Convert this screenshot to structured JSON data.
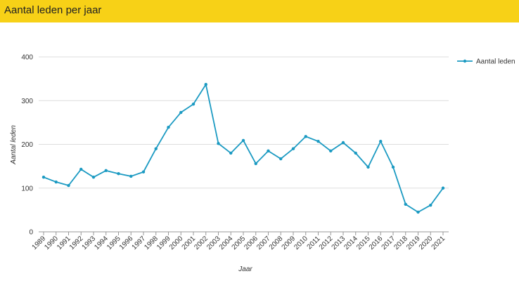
{
  "chart_data": {
    "type": "line",
    "title": "Aantal leden per jaar",
    "x_label": "Jaar",
    "y_label": "Aantal leden",
    "categories": [
      "1989",
      "1990",
      "1991",
      "1992",
      "1993",
      "1994",
      "1995",
      "1996",
      "1997",
      "1998",
      "1999",
      "2000",
      "2001",
      "2002",
      "2003",
      "2004",
      "2005",
      "2006",
      "2007",
      "2008",
      "2009",
      "2010",
      "2011",
      "2012",
      "2013",
      "2014",
      "2015",
      "2016",
      "2017",
      "2018",
      "2019",
      "2020",
      "2021"
    ],
    "series": [
      {
        "name": "Aantal leden",
        "color": "#1b9ac2",
        "values": [
          125,
          114,
          106,
          143,
          125,
          140,
          133,
          127,
          137,
          190,
          239,
          273,
          292,
          337,
          202,
          180,
          209,
          156,
          185,
          167,
          190,
          218,
          207,
          185,
          204,
          180,
          148,
          207,
          148,
          63,
          45,
          61,
          100
        ]
      }
    ],
    "ylim": [
      0,
      400
    ],
    "yticks": [
      0,
      100,
      200,
      300,
      400
    ],
    "grid": true,
    "legend": "right"
  }
}
